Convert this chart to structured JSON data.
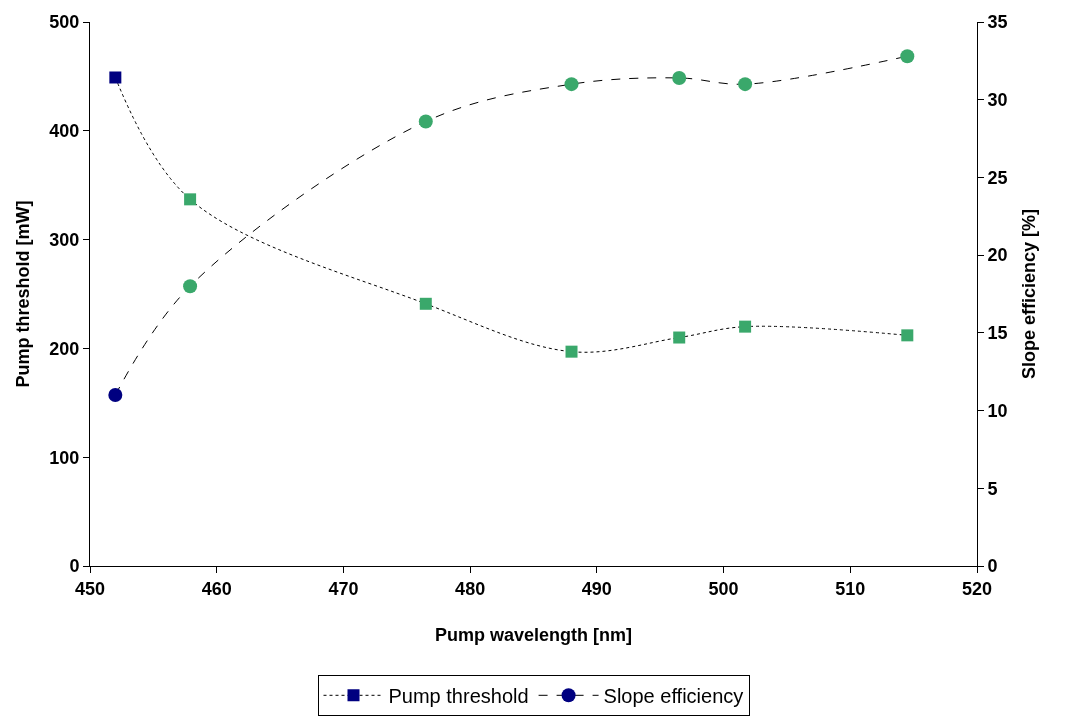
{
  "chart_data": {
    "type": "line",
    "xlabel": "Pump wavelength [nm]",
    "ylabel": "Pump threshold [mW]",
    "y2label": "Slope efficiency [%]",
    "x": [
      452,
      457.9,
      476.5,
      488,
      496.5,
      501.7,
      514.5
    ],
    "series": [
      {
        "name": "Pump threshold",
        "colors": [
          "#000080",
          "#3aa86b",
          "#3aa86b",
          "#3aa86b",
          "#3aa86b",
          "#3aa86b",
          "#3aa86b"
        ],
        "values": [
          449,
          337,
          241,
          197,
          210,
          220,
          212
        ],
        "marker": "square",
        "line_style": "dotted"
      },
      {
        "name": "Slope efficiency",
        "axis": "y2",
        "colors": [
          "#000080",
          "#3aa86b",
          "#3aa86b",
          "#3aa86b",
          "#3aa86b",
          "#3aa86b",
          "#3aa86b"
        ],
        "values": [
          11.0,
          18.0,
          28.6,
          31.0,
          31.4,
          31.0,
          32.8
        ],
        "marker": "circle",
        "line_style": "dashed"
      }
    ],
    "xlim": [
      450,
      520
    ],
    "xticks": [
      450,
      460,
      470,
      480,
      490,
      500,
      510,
      520
    ],
    "ylim": [
      0,
      500
    ],
    "yticks": [
      0,
      100,
      200,
      300,
      400,
      500
    ],
    "y2lim": [
      0,
      35
    ],
    "y2ticks": [
      0,
      5,
      10,
      15,
      20,
      25,
      30,
      35
    ],
    "legend": "bottom"
  }
}
